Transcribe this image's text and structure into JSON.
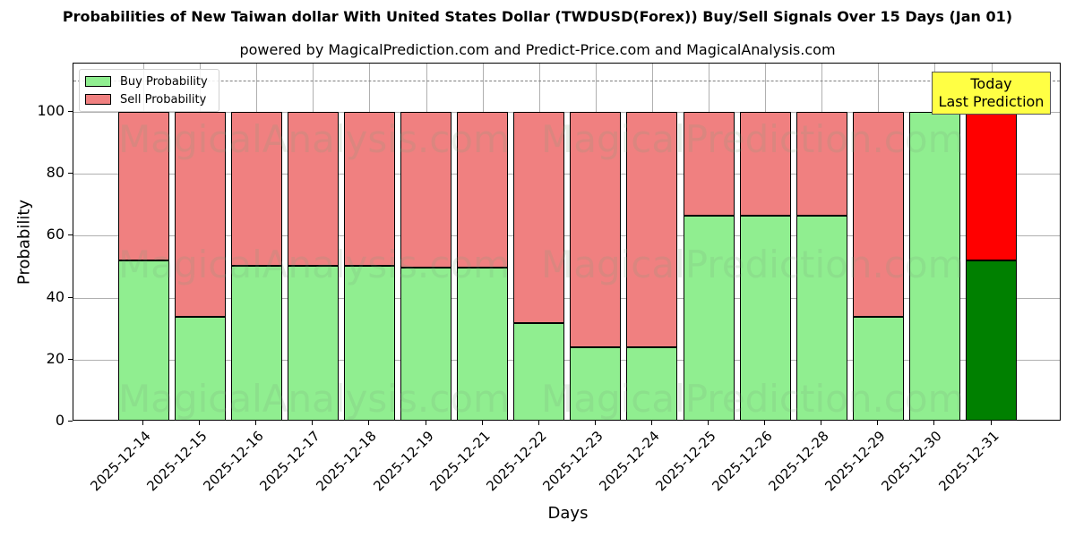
{
  "header": {
    "title": "Probabilities of New Taiwan dollar With United States Dollar (TWDUSD(Forex)) Buy/Sell Signals Over 15 Days (Jan 01)",
    "subtitle": "powered by MagicalPrediction.com and Predict-Price.com and MagicalAnalysis.com"
  },
  "legend": {
    "buy_label": "Buy Probability",
    "sell_label": "Sell Probability"
  },
  "annotation": {
    "line1": "Today",
    "line2": "Last Prediction"
  },
  "axes": {
    "xlabel": "Days",
    "ylabel": "Probability",
    "yticks": [
      "0",
      "20",
      "40",
      "60",
      "80",
      "100"
    ]
  },
  "watermarks": [
    "MagicalAnalysis.com",
    "MagicalPrediction.com"
  ],
  "colors": {
    "buy": "#90ee90",
    "sell": "#f08080",
    "today_buy": "#008000",
    "today_sell": "#ff0000",
    "annotation_bg": "#ffff44"
  },
  "chart_data": {
    "type": "bar",
    "stacked": true,
    "title": "Probabilities of New Taiwan dollar With United States Dollar (TWDUSD(Forex)) Buy/Sell Signals Over 15 Days (Jan 01)",
    "subtitle": "powered by MagicalPrediction.com and Predict-Price.com and MagicalAnalysis.com",
    "xlabel": "Days",
    "ylabel": "Probability",
    "ylim": [
      0,
      115
    ],
    "yticks": [
      0,
      20,
      40,
      60,
      80,
      100
    ],
    "grid": true,
    "legend_position": "upper left",
    "reference_line": {
      "y": 110,
      "style": "dashed",
      "color": "#808080"
    },
    "categories": [
      "2025-12-14",
      "2025-12-15",
      "2025-12-16",
      "2025-12-17",
      "2025-12-18",
      "2025-12-19",
      "2025-12-21",
      "2025-12-22",
      "2025-12-23",
      "2025-12-24",
      "2025-12-25",
      "2025-12-26",
      "2025-12-28",
      "2025-12-29",
      "2025-12-30",
      "2025-12-31"
    ],
    "series": [
      {
        "name": "Buy Probability",
        "values": [
          52.0,
          33.8,
          50.3,
          50.3,
          50.3,
          49.7,
          49.7,
          31.8,
          24.0,
          24.0,
          66.5,
          66.5,
          66.5,
          33.8,
          100.0,
          52.0
        ]
      },
      {
        "name": "Sell Probability",
        "values": [
          48.0,
          66.2,
          49.7,
          49.7,
          49.7,
          50.3,
          50.3,
          68.2,
          76.0,
          76.0,
          33.5,
          33.5,
          33.5,
          66.2,
          0.0,
          48.0
        ]
      }
    ],
    "annotations": [
      {
        "text": "Today\nLast Prediction",
        "x": "2025-12-31",
        "bg": "#ffff44"
      }
    ],
    "highlight": {
      "category": "2025-12-31",
      "buy_color": "#008000",
      "sell_color": "#ff0000"
    }
  }
}
